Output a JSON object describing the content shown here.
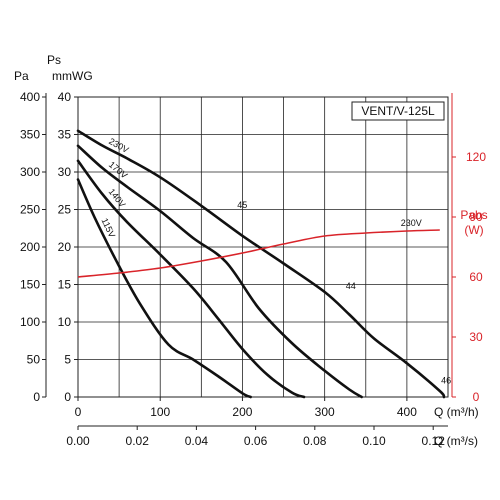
{
  "chart_data": {
    "type": "line",
    "model_label": "VENT/V-125L",
    "axes": {
      "left_pa": {
        "unit_label": "Pa",
        "ticks": [
          "0",
          "50",
          "100",
          "150",
          "200",
          "250",
          "300",
          "350",
          "400"
        ],
        "range": [
          0,
          400
        ]
      },
      "left_mmwg": {
        "unit_label_top": "Ps",
        "unit_label": "mmWG",
        "ticks": [
          "0",
          "5",
          "10",
          "15",
          "20",
          "25",
          "30",
          "35",
          "40"
        ],
        "range": [
          0,
          40
        ]
      },
      "right_power": {
        "unit_label_top": "Pabs",
        "unit_label": "(W)",
        "ticks": [
          "0",
          "30",
          "60",
          "90",
          "120"
        ],
        "range": [
          0,
          150
        ],
        "color": "#d9242a"
      },
      "x_m3h": {
        "label": "Q (m³/h)",
        "ticks": [
          "0",
          "100",
          "200",
          "300",
          "400"
        ],
        "range": [
          0,
          450
        ]
      },
      "x_m3s": {
        "label": "Q (m³/s)",
        "ticks": [
          "0.00",
          "0.02",
          "0.04",
          "0.06",
          "0.08",
          "0.10",
          "0.12"
        ],
        "range": [
          0,
          0.125
        ]
      }
    },
    "grid": true,
    "pressure_series": [
      {
        "name": "230V",
        "x": [
          0,
          30,
          60,
          100,
          150,
          200,
          250,
          300,
          330,
          360,
          400,
          440,
          445
        ],
        "y": [
          355,
          335,
          318,
          293,
          255,
          215,
          178,
          140,
          110,
          78,
          45,
          8,
          0
        ]
      },
      {
        "name": "170V",
        "x": [
          0,
          30,
          60,
          100,
          140,
          180,
          220,
          260,
          300,
          330,
          345
        ],
        "y": [
          335,
          305,
          280,
          248,
          212,
          180,
          118,
          72,
          35,
          10,
          0
        ]
      },
      {
        "name": "140V",
        "x": [
          0,
          30,
          60,
          100,
          140,
          170,
          200,
          230,
          260,
          275
        ],
        "y": [
          315,
          270,
          233,
          190,
          145,
          105,
          64,
          30,
          6,
          0
        ]
      },
      {
        "name": "115V",
        "x": [
          0,
          20,
          45,
          75,
          110,
          140,
          170,
          200,
          210
        ],
        "y": [
          290,
          240,
          185,
          125,
          70,
          50,
          28,
          5,
          0
        ]
      }
    ],
    "power_series": [
      {
        "name": "230V",
        "color": "#d9242a",
        "x": [
          0,
          50,
          100,
          150,
          200,
          250,
          300,
          350,
          400,
          440
        ],
        "y": [
          60,
          62,
          64.5,
          68,
          72,
          76.5,
          80.5,
          82,
          83,
          83.5
        ]
      }
    ],
    "annotations": [
      {
        "text": "45",
        "x": 190,
        "y": 248
      },
      {
        "text": "44",
        "x": 322,
        "y": 140
      },
      {
        "text": "46",
        "x": 438,
        "y": 14
      }
    ]
  }
}
